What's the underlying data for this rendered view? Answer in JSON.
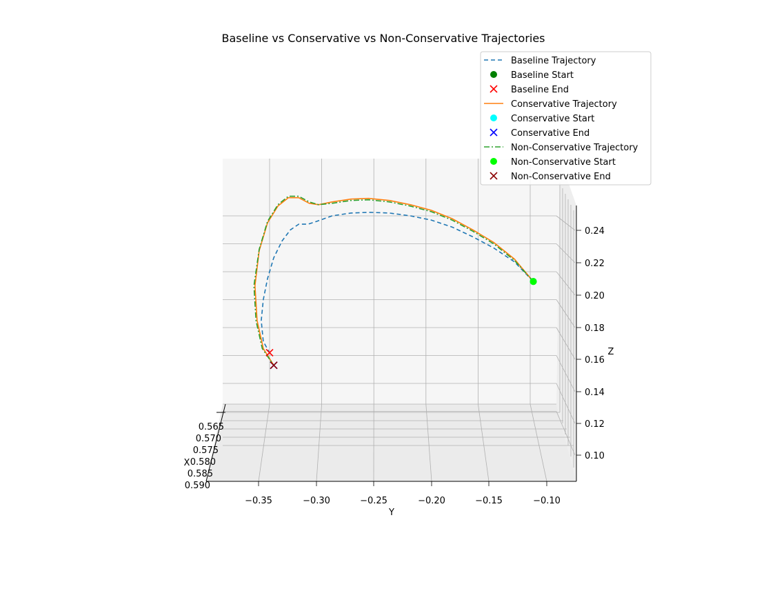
{
  "chart_data": {
    "type": "line",
    "projection": "3d",
    "title": "Baseline vs Conservative vs Non-Conservative Trajectories",
    "xlabel": "X",
    "ylabel": "Y",
    "zlabel": "Z",
    "x_ticks": [
      "0.565",
      "0.570",
      "0.575",
      "0.580",
      "0.585",
      "0.590"
    ],
    "y_ticks": [
      "−0.35",
      "−0.30",
      "−0.25",
      "−0.20",
      "−0.15",
      "−0.10"
    ],
    "z_ticks": [
      "0.10",
      "0.12",
      "0.14",
      "0.16",
      "0.18",
      "0.20",
      "0.22",
      "0.24"
    ],
    "ylim": [
      -0.385,
      -0.075
    ],
    "zlim": [
      0.085,
      0.255
    ],
    "grid": true,
    "legend_position": "upper right",
    "series": [
      {
        "name": "Baseline Trajectory",
        "style": "dashed",
        "color": "#1f77b4",
        "y": [
          -0.097,
          -0.115,
          -0.135,
          -0.155,
          -0.175,
          -0.195,
          -0.215,
          -0.235,
          -0.255,
          -0.272,
          -0.29,
          -0.305,
          -0.313,
          -0.322,
          -0.33,
          -0.338,
          -0.346,
          -0.352,
          -0.356,
          -0.358,
          -0.356,
          -0.35
        ],
        "z": [
          0.193,
          0.207,
          0.217,
          0.225,
          0.232,
          0.237,
          0.24,
          0.242,
          0.2425,
          0.242,
          0.24,
          0.236,
          0.234,
          0.234,
          0.23,
          0.222,
          0.21,
          0.195,
          0.18,
          0.165,
          0.15,
          0.142
        ]
      },
      {
        "name": "Conservative Trajectory",
        "style": "solid",
        "color": "#ff7f0e",
        "y": [
          -0.097,
          -0.115,
          -0.135,
          -0.155,
          -0.175,
          -0.195,
          -0.215,
          -0.235,
          -0.255,
          -0.272,
          -0.29,
          -0.303,
          -0.312,
          -0.322,
          -0.332,
          -0.342,
          -0.352,
          -0.36,
          -0.364,
          -0.362,
          -0.356,
          -0.346
        ],
        "z": [
          0.193,
          0.209,
          0.221,
          0.23,
          0.238,
          0.244,
          0.248,
          0.251,
          0.2525,
          0.252,
          0.25,
          0.248,
          0.249,
          0.253,
          0.253,
          0.247,
          0.235,
          0.215,
          0.19,
          0.165,
          0.145,
          0.133
        ]
      },
      {
        "name": "Non-Conservative Trajectory",
        "style": "dashdot",
        "color": "#2ca02c",
        "y": [
          -0.097,
          -0.115,
          -0.135,
          -0.155,
          -0.175,
          -0.195,
          -0.215,
          -0.235,
          -0.255,
          -0.272,
          -0.29,
          -0.303,
          -0.312,
          -0.322,
          -0.332,
          -0.342,
          -0.352,
          -0.36,
          -0.365,
          -0.363,
          -0.357,
          -0.346
        ],
        "z": [
          0.193,
          0.208,
          0.22,
          0.229,
          0.237,
          0.243,
          0.247,
          0.25,
          0.2515,
          0.251,
          0.249,
          0.248,
          0.25,
          0.254,
          0.254,
          0.248,
          0.236,
          0.216,
          0.19,
          0.165,
          0.145,
          0.133
        ]
      }
    ],
    "markers": [
      {
        "name": "Baseline Start",
        "marker": "o",
        "color": "#008000",
        "y": -0.097,
        "z": 0.193
      },
      {
        "name": "Baseline End",
        "marker": "x",
        "color": "#ff0000",
        "y": -0.35,
        "z": 0.142
      },
      {
        "name": "Conservative Start",
        "marker": "o",
        "color": "#00ffff",
        "y": -0.097,
        "z": 0.193
      },
      {
        "name": "Conservative End",
        "marker": "x",
        "color": "#0000ff",
        "y": -0.346,
        "z": 0.133
      },
      {
        "name": "Non-Conservative Start",
        "marker": "o",
        "color": "#00ff00",
        "y": -0.097,
        "z": 0.193
      },
      {
        "name": "Non-Conservative End",
        "marker": "x",
        "color": "#8b0000",
        "y": -0.346,
        "z": 0.133
      }
    ],
    "legend": [
      {
        "label": "Baseline Trajectory",
        "kind": "dashed",
        "color": "#1f77b4"
      },
      {
        "label": "Baseline Start",
        "kind": "circle",
        "color": "#008000"
      },
      {
        "label": "Baseline End",
        "kind": "x",
        "color": "#ff0000"
      },
      {
        "label": "Conservative Trajectory",
        "kind": "solid",
        "color": "#ff7f0e"
      },
      {
        "label": "Conservative Start",
        "kind": "circle",
        "color": "#00ffff"
      },
      {
        "label": "Conservative End",
        "kind": "x",
        "color": "#0000ff"
      },
      {
        "label": "Non-Conservative Trajectory",
        "kind": "dashdot",
        "color": "#2ca02c"
      },
      {
        "label": "Non-Conservative Start",
        "kind": "circle",
        "color": "#00ff00"
      },
      {
        "label": "Non-Conservative End",
        "kind": "x",
        "color": "#8b0000"
      }
    ]
  }
}
